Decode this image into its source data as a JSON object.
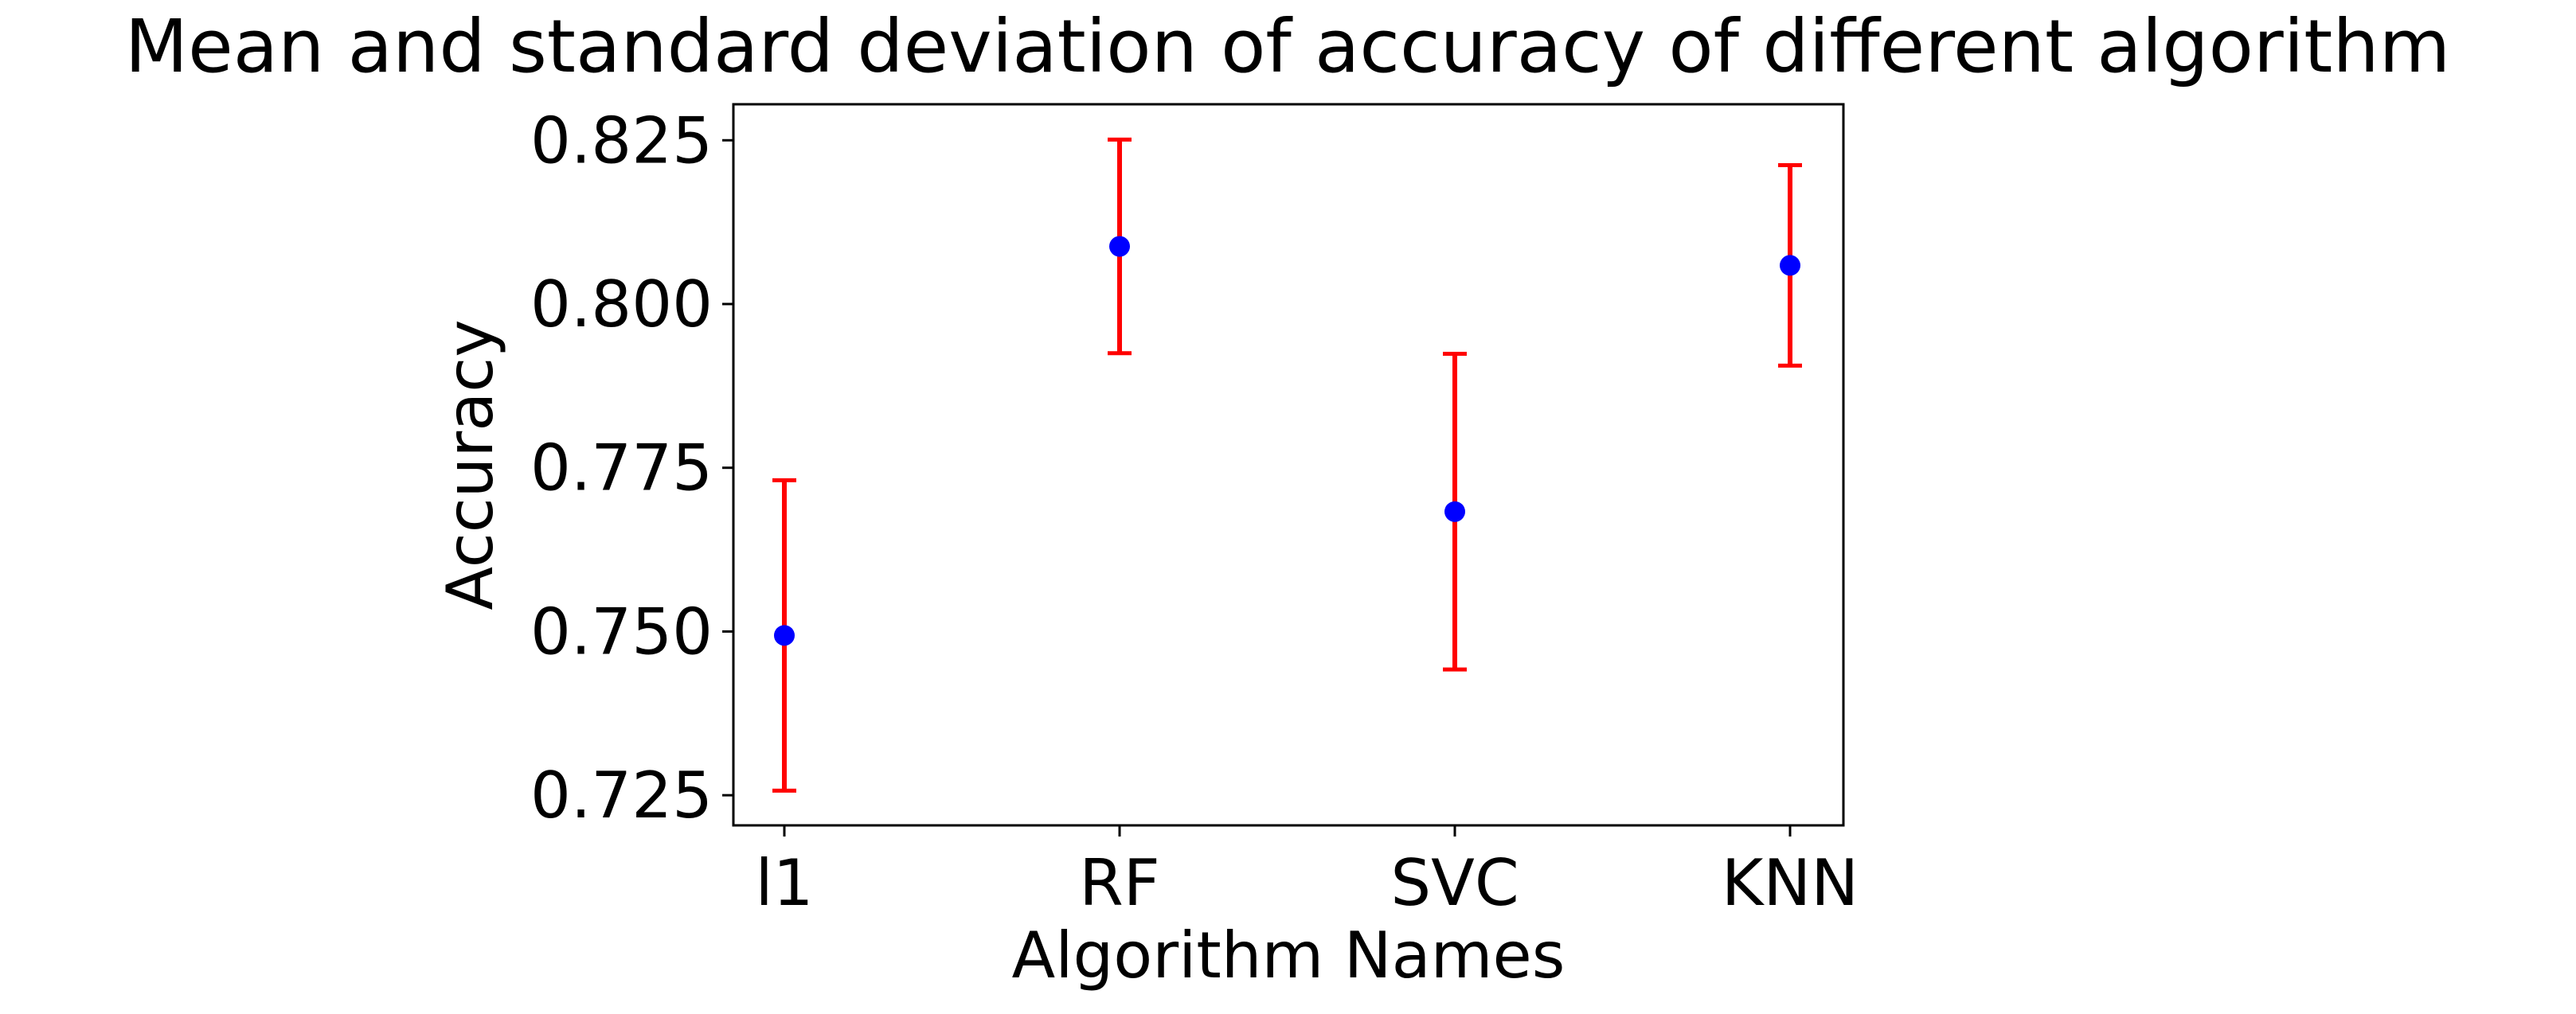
{
  "chart_data": {
    "type": "scatter",
    "title": "Mean and standard deviation of accuracy of different algorithm",
    "xlabel": "Algorithm Names",
    "ylabel": "Accuracy",
    "categories": [
      "l1",
      "RF",
      "SVC",
      "KNN"
    ],
    "series": [
      {
        "values": [
          0.7494,
          0.8088,
          0.7683,
          0.8059
        ],
        "std": [
          0.0237,
          0.0163,
          0.0241,
          0.0153
        ]
      }
    ],
    "ylim": [
      0.7204,
      0.8305
    ],
    "yticks": [
      0.725,
      0.75,
      0.775,
      0.8,
      0.825
    ],
    "ytick_labels": [
      "0.725",
      "0.750",
      "0.775",
      "0.800",
      "0.825"
    ],
    "grid": false,
    "legend": "none",
    "colors": {
      "marker": "#0000ff",
      "errorbar": "#ff0000",
      "axis": "#000000",
      "text": "#000000"
    }
  }
}
